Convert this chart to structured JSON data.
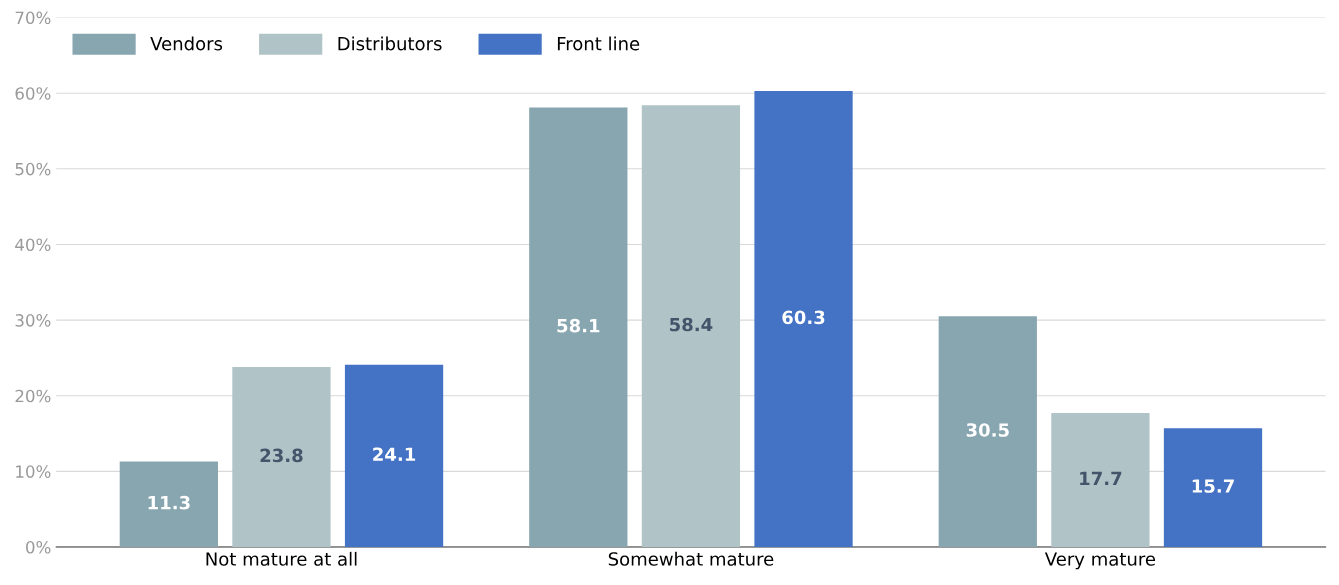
{
  "chart_data": {
    "type": "bar",
    "categories": [
      "Not mature at all",
      "Somewhat mature",
      "Very mature"
    ],
    "series": [
      {
        "name": "Vendors",
        "color": "#88a6b0",
        "values": [
          11.3,
          58.1,
          30.5
        ]
      },
      {
        "name": "Distributors",
        "color": "#b0c3c6",
        "values": [
          23.8,
          58.4,
          17.7
        ]
      },
      {
        "name": "Front line",
        "color": "#4472c4",
        "values": [
          24.1,
          60.3,
          15.7
        ]
      }
    ],
    "ylim": [
      0,
      70
    ],
    "yticks": [
      {
        "value": 0,
        "label": "0%"
      },
      {
        "value": 10,
        "label": "10%"
      },
      {
        "value": 20,
        "label": "20%"
      },
      {
        "value": 30,
        "label": "30%"
      },
      {
        "value": 40,
        "label": "40%"
      },
      {
        "value": 50,
        "label": "50%"
      },
      {
        "value": 60,
        "label": "60%"
      },
      {
        "value": 70,
        "label": "70%"
      }
    ],
    "grid": "y",
    "legend": "top left",
    "data_labels": true
  }
}
